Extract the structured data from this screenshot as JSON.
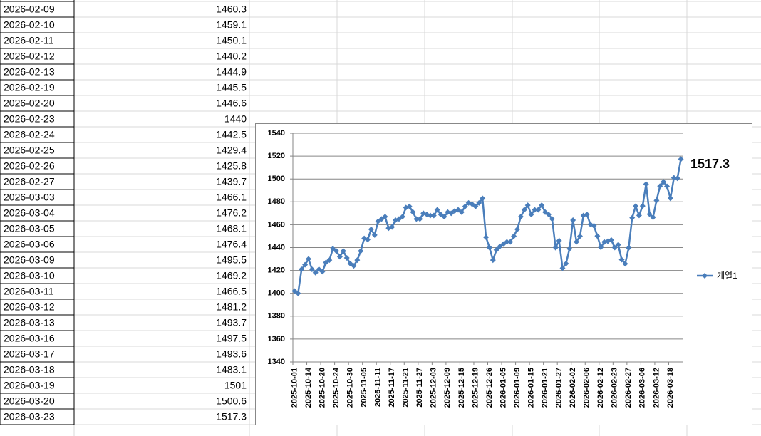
{
  "sheet": {
    "rows": [
      [
        "2026-02-09",
        1460.3
      ],
      [
        "2026-02-10",
        1459.1
      ],
      [
        "2026-02-11",
        1450.1
      ],
      [
        "2026-02-12",
        1440.2
      ],
      [
        "2026-02-13",
        1444.9
      ],
      [
        "2026-02-19",
        1445.5
      ],
      [
        "2026-02-20",
        1446.6
      ],
      [
        "2026-02-23",
        1440
      ],
      [
        "2026-02-24",
        1442.5
      ],
      [
        "2026-02-25",
        1429.4
      ],
      [
        "2026-02-26",
        1425.8
      ],
      [
        "2026-02-27",
        1439.7
      ],
      [
        "2026-03-03",
        1466.1
      ],
      [
        "2026-03-04",
        1476.2
      ],
      [
        "2026-03-05",
        1468.1
      ],
      [
        "2026-03-06",
        1476.4
      ],
      [
        "2026-03-09",
        1495.5
      ],
      [
        "2026-03-10",
        1469.2
      ],
      [
        "2026-03-11",
        1466.5
      ],
      [
        "2026-03-12",
        1481.2
      ],
      [
        "2026-03-13",
        1493.7
      ],
      [
        "2026-03-16",
        1497.5
      ],
      [
        "2026-03-17",
        1493.6
      ],
      [
        "2026-03-18",
        1483.1
      ],
      [
        "2026-03-19",
        1501
      ],
      [
        "2026-03-20",
        1500.6
      ],
      [
        "2026-03-23",
        1517.3
      ]
    ]
  },
  "chart_data": {
    "type": "line",
    "categories": [
      "2025-10-01",
      null,
      null,
      null,
      "2025-10-14",
      null,
      null,
      null,
      "2025-10-20",
      null,
      null,
      null,
      "2025-10-24",
      null,
      null,
      null,
      "2025-10-30",
      null,
      null,
      null,
      "2025-11-05",
      null,
      null,
      null,
      "2025-11-11",
      null,
      null,
      null,
      "2025-11-17",
      null,
      null,
      null,
      "2025-11-21",
      null,
      null,
      null,
      "2025-11-27",
      null,
      null,
      null,
      "2025-12-03",
      null,
      null,
      null,
      "2025-12-09",
      null,
      null,
      null,
      "2025-12-15",
      null,
      null,
      null,
      "2025-12-19",
      null,
      null,
      null,
      "2025-12-26",
      null,
      null,
      null,
      "2026-01-05",
      null,
      null,
      null,
      "2026-01-09",
      null,
      null,
      null,
      "2026-01-15",
      null,
      null,
      null,
      "2026-01-21",
      null,
      null,
      null,
      "2026-01-27",
      null,
      null,
      null,
      "2026-02-02",
      null,
      null,
      null,
      "2026-02-06",
      null,
      null,
      null,
      "2026-02-12",
      null,
      null,
      null,
      "2026-02-23",
      null,
      null,
      null,
      "2026-02-27",
      null,
      null,
      null,
      "2026-03-06",
      null,
      null,
      null,
      "2026-03-12",
      null,
      null,
      null,
      "2026-03-18",
      null,
      null,
      null
    ],
    "series": [
      {
        "name": "계열1",
        "color": "#4a7ebb",
        "values": [
          1402,
          1400,
          1421,
          1425,
          1430,
          1421,
          1418,
          1421,
          1419,
          1427,
          1429,
          1439,
          1437,
          1432,
          1437,
          1431,
          1426,
          1424,
          1429,
          1437,
          1448,
          1447,
          1456,
          1451,
          1463,
          1465,
          1467,
          1457,
          1458,
          1464,
          1465,
          1467,
          1475,
          1476,
          1471,
          1465,
          1465,
          1470,
          1469,
          1468,
          1468,
          1473,
          1469,
          1467,
          1471,
          1470,
          1472,
          1473,
          1471,
          1476,
          1479,
          1478,
          1476,
          1479,
          1483,
          1449,
          1440,
          1429,
          1438,
          1441,
          1443,
          1445,
          1445,
          1450,
          1456,
          1467,
          1473,
          1477,
          1469,
          1473,
          1473,
          1477,
          1471,
          1469,
          1465,
          1440,
          1446,
          1422,
          1426,
          1439,
          1464,
          1445,
          1450,
          1468,
          1469,
          1460.3,
          1459.1,
          1450.1,
          1440.2,
          1444.9,
          1445.5,
          1446.6,
          1440,
          1442.5,
          1429.4,
          1425.8,
          1439.7,
          1466.1,
          1476.2,
          1468.1,
          1476.4,
          1495.5,
          1469.2,
          1466.5,
          1481.2,
          1493.7,
          1497.5,
          1493.6,
          1483.1,
          1501,
          1500.6,
          1517.3
        ]
      }
    ],
    "ylim": [
      1340,
      1540
    ],
    "yticks": [
      1340,
      1360,
      1380,
      1400,
      1420,
      1440,
      1460,
      1480,
      1500,
      1520,
      1540
    ],
    "grid": true,
    "legend": "right",
    "data_label_index": 111
  }
}
